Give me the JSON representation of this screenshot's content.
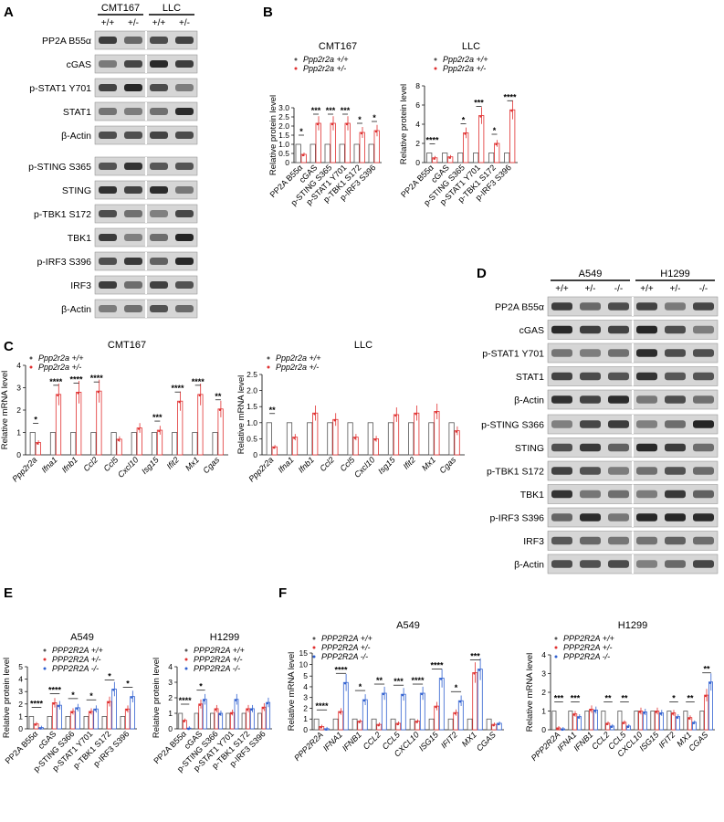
{
  "panel_letters": [
    "A",
    "B",
    "C",
    "D",
    "E",
    "F"
  ],
  "colors": {
    "wt": "#555555",
    "het": "#e03030",
    "ko": "#3060d0",
    "blot_dark": "#1a1a1a",
    "blot_bg": "#d6d6d6"
  },
  "blot_A": {
    "groups": [
      "CMT167",
      "LLC"
    ],
    "genotypes": [
      "+/+",
      "+/-",
      "+/+",
      "+/-"
    ],
    "rows_top": [
      "PP2A B55α",
      "cGAS",
      "p-STAT1 Y701",
      "STAT1",
      "β-Actin"
    ],
    "rows_bottom": [
      "p-STING S365",
      "STING",
      "p-TBK1 S172",
      "TBK1",
      "p-IRF3 S396",
      "IRF3",
      "β-Actin"
    ]
  },
  "blot_D": {
    "groups": [
      "A549",
      "H1299"
    ],
    "genotypes": [
      "+/+",
      "+/-",
      "-/-",
      "+/+",
      "+/-",
      "-/-"
    ],
    "rows_top": [
      "PP2A B55α",
      "cGAS",
      "p-STAT1 Y701",
      "STAT1",
      "β-Actin"
    ],
    "rows_bottom": [
      "p-STING S366",
      "STING",
      "p-TBK1 S172",
      "TBK1",
      "p-IRF3 S396",
      "IRF3",
      "β-Actin"
    ]
  },
  "chart_data": [
    {
      "panel": "B",
      "type": "bar",
      "title": "CMT167",
      "ylabel": "Relative protein level",
      "ylim": [
        0,
        3
      ],
      "yticks": [
        "0",
        "0.5",
        "1.0",
        "1.5",
        "2.0",
        "2.5",
        "3.0"
      ],
      "categories": [
        "PP2A B55α",
        "cGAS",
        "p-STING S365",
        "p-STAT1 Y701",
        "p-TBK1 S172",
        "p-IRF3 S396"
      ],
      "series": [
        {
          "name": "Ppp2r2a +/+",
          "values": [
            1,
            1,
            1,
            1,
            1,
            1
          ]
        },
        {
          "name": "Ppp2r2a +/-",
          "values": [
            0.45,
            2.15,
            2.15,
            2.15,
            1.65,
            1.75
          ]
        }
      ],
      "significance": [
        "*",
        "***",
        "***",
        "***",
        "*",
        "*"
      ]
    },
    {
      "panel": "B",
      "type": "bar",
      "title": "LLC",
      "ylabel": "Relative protein level",
      "ylim": [
        0,
        8
      ],
      "yticks": [
        "0",
        "2",
        "4",
        "6",
        "8"
      ],
      "categories": [
        "PP2A B55α",
        "cGAS",
        "p-STING S365",
        "p-STAT1 Y701",
        "p-TBK1 S172",
        "p-IRF3 S396"
      ],
      "series": [
        {
          "name": "Ppp2r2a +/+",
          "values": [
            1,
            1,
            1,
            1,
            1,
            1
          ]
        },
        {
          "name": "Ppp2r2a +/-",
          "values": [
            0.5,
            0.6,
            3.1,
            4.9,
            2.0,
            5.5
          ]
        }
      ],
      "significance": [
        "****",
        "",
        "*",
        "***",
        "*",
        "****"
      ]
    },
    {
      "panel": "C",
      "type": "bar",
      "title": "CMT167",
      "ylabel": "Relative mRNA level",
      "ylim": [
        0,
        4
      ],
      "yticks": [
        "0",
        "1",
        "2",
        "3",
        "4"
      ],
      "categories": [
        "Ppp2r2a",
        "Ifna1",
        "Ifnb1",
        "Ccl2",
        "Ccl5",
        "Cxcl10",
        "Isg15",
        "Ifit2",
        "Mx1",
        "Cgas"
      ],
      "series": [
        {
          "name": "Ppp2r2a +/+",
          "values": [
            1,
            1,
            1,
            1,
            1,
            1,
            1,
            1,
            1,
            1
          ]
        },
        {
          "name": "Ppp2r2a +/-",
          "values": [
            0.55,
            2.7,
            2.8,
            2.85,
            0.7,
            1.2,
            1.1,
            2.4,
            2.7,
            2.05
          ]
        }
      ],
      "significance": [
        "*",
        "****",
        "****",
        "****",
        "",
        "",
        "***",
        "****",
        "****",
        "**"
      ]
    },
    {
      "panel": "C",
      "type": "bar",
      "title": "LLC",
      "ylabel": "Relative mRNA level",
      "ylim": [
        0,
        2.5
      ],
      "yticks": [
        "0",
        "0.5",
        "1.0",
        "1.5",
        "2.0",
        "2.5"
      ],
      "categories": [
        "Ppp2r2a",
        "Ifna1",
        "Ifnb1",
        "Ccl2",
        "Ccl5",
        "Cxcl10",
        "Isg15",
        "Ifit2",
        "Mx1",
        "Cgas"
      ],
      "series": [
        {
          "name": "Ppp2r2a +/+",
          "values": [
            1,
            1,
            1,
            1,
            1,
            1,
            1,
            1,
            1,
            1
          ]
        },
        {
          "name": "Ppp2r2a +/-",
          "values": [
            0.25,
            0.55,
            1.3,
            1.1,
            0.55,
            0.5,
            1.25,
            1.3,
            1.35,
            0.75
          ]
        }
      ],
      "significance": [
        "**",
        "",
        "",
        "",
        "",
        "",
        "",
        "",
        "",
        ""
      ]
    },
    {
      "panel": "E",
      "type": "bar",
      "title": "A549",
      "ylabel": "Relative protein level",
      "ylim": [
        0,
        5
      ],
      "yticks": [
        "0",
        "1",
        "2",
        "3",
        "4",
        "5"
      ],
      "categories": [
        "PP2A B55α",
        "cGAS",
        "p-STING S366",
        "p-STAT1 Y701",
        "p-TBK1 S172",
        "p-IRF3 S396"
      ],
      "series": [
        {
          "name": "PPP2R2A +/+",
          "values": [
            1,
            1,
            1,
            1,
            1,
            1
          ]
        },
        {
          "name": "PPP2R2A +/-",
          "values": [
            0.4,
            2.1,
            1.4,
            1.4,
            2.2,
            1.6
          ]
        },
        {
          "name": "PPP2R2A -/-",
          "values": [
            0.1,
            1.9,
            1.7,
            1.6,
            3.2,
            2.6
          ]
        }
      ],
      "significance": [
        "****",
        "****",
        "*",
        "*",
        "*",
        "*"
      ]
    },
    {
      "panel": "E",
      "type": "bar",
      "title": "H1299",
      "ylabel": "Relative protein level",
      "ylim": [
        0,
        4
      ],
      "yticks": [
        "0",
        "1",
        "2",
        "3",
        "4"
      ],
      "categories": [
        "PP2A B55α",
        "cGAS",
        "p-STING S366",
        "p-STAT1 Y701",
        "p-TBK1 S172",
        "p-IRF3 S396"
      ],
      "series": [
        {
          "name": "PPP2R2A +/+",
          "values": [
            1,
            1,
            1,
            1,
            1,
            1
          ]
        },
        {
          "name": "PPP2R2A +/-",
          "values": [
            0.55,
            1.6,
            1.3,
            1.05,
            1.3,
            1.4
          ]
        },
        {
          "name": "PPP2R2A -/-",
          "values": [
            0.05,
            1.9,
            1.0,
            1.9,
            1.3,
            1.7
          ]
        }
      ],
      "significance": [
        "****",
        "*",
        "",
        "",
        "",
        ""
      ]
    },
    {
      "panel": "F",
      "type": "bar",
      "title": "A549",
      "ylabel": "Relative mRNA level",
      "ylim": [
        0,
        15
      ],
      "yticks": [
        "0",
        "1",
        "2",
        "3",
        "4",
        "5",
        "10",
        "15"
      ],
      "categories": [
        "PPP2R2A",
        "IFNA1",
        "IFNB1",
        "CCL2",
        "CCL5",
        "CXCL10",
        "ISG15",
        "IFIT2",
        "MX1",
        "CGAS"
      ],
      "series": [
        {
          "name": "PPP2R2A +/+",
          "values": [
            1,
            1,
            1,
            1,
            1,
            1,
            1,
            1,
            1,
            1
          ]
        },
        {
          "name": "PPP2R2A +/-",
          "values": [
            0.3,
            1.7,
            0.8,
            0.5,
            0.6,
            0.8,
            2.2,
            1.6,
            6.5,
            0.5
          ]
        },
        {
          "name": "PPP2R2A -/-",
          "values": [
            0.1,
            4.4,
            2.8,
            3.4,
            3.3,
            3.4,
            4.8,
            2.7,
            8.0,
            0.6
          ]
        }
      ],
      "significance": [
        "****",
        "****",
        "*",
        "**",
        "***",
        "****",
        "****",
        "*",
        "***",
        ""
      ]
    },
    {
      "panel": "F",
      "type": "bar",
      "title": "H1299",
      "ylabel": "Relative mRNA level",
      "ylim": [
        0,
        4
      ],
      "yticks": [
        "0",
        "1",
        "2",
        "3",
        "4"
      ],
      "categories": [
        "PPP2R2A",
        "IFNA1",
        "IFNB1",
        "CCL2",
        "CCL5",
        "CXCL10",
        "ISG15",
        "IFIT2",
        "MX1",
        "CGAS"
      ],
      "series": [
        {
          "name": "PPP2R2A +/+",
          "values": [
            1,
            1,
            1,
            1,
            1,
            1,
            1,
            1,
            1,
            1
          ]
        },
        {
          "name": "PPP2R2A +/-",
          "values": [
            0.1,
            0.85,
            1.1,
            0.35,
            0.4,
            1.0,
            1.0,
            0.9,
            0.65,
            1.85
          ]
        },
        {
          "name": "PPP2R2A -/-",
          "values": [
            0.05,
            0.7,
            1.05,
            0.2,
            0.2,
            0.95,
            0.9,
            0.7,
            0.4,
            2.55
          ]
        }
      ],
      "significance": [
        "***",
        "***",
        "",
        "**",
        "**",
        "",
        "",
        "*",
        "**",
        "**"
      ]
    }
  ]
}
